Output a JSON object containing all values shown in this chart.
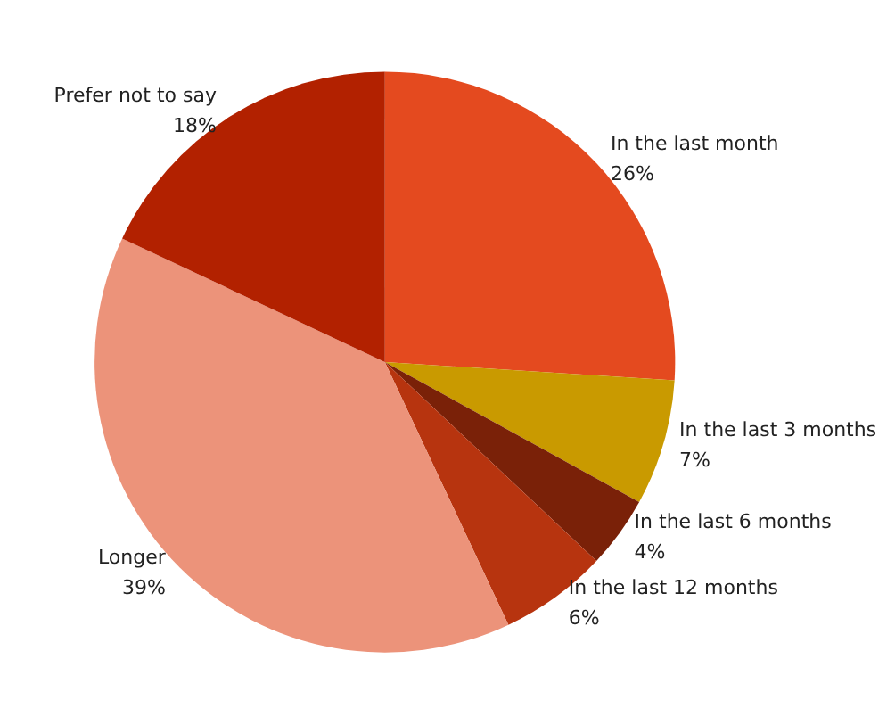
{
  "chart_data": {
    "type": "pie",
    "categories": [
      "In the last month",
      "In the last 3 months",
      "In the last 6 months",
      "In the last 12 months",
      "Longer",
      "Prefer not to say"
    ],
    "values": [
      26,
      7,
      4,
      6,
      39,
      18
    ],
    "value_labels": [
      "26%",
      "7%",
      "4%",
      "6%",
      "39%",
      "18%"
    ],
    "colors": [
      "#e44a1f",
      "#c99a00",
      "#7a2108",
      "#b7340f",
      "#ec937a",
      "#b22100"
    ],
    "legend": false
  }
}
